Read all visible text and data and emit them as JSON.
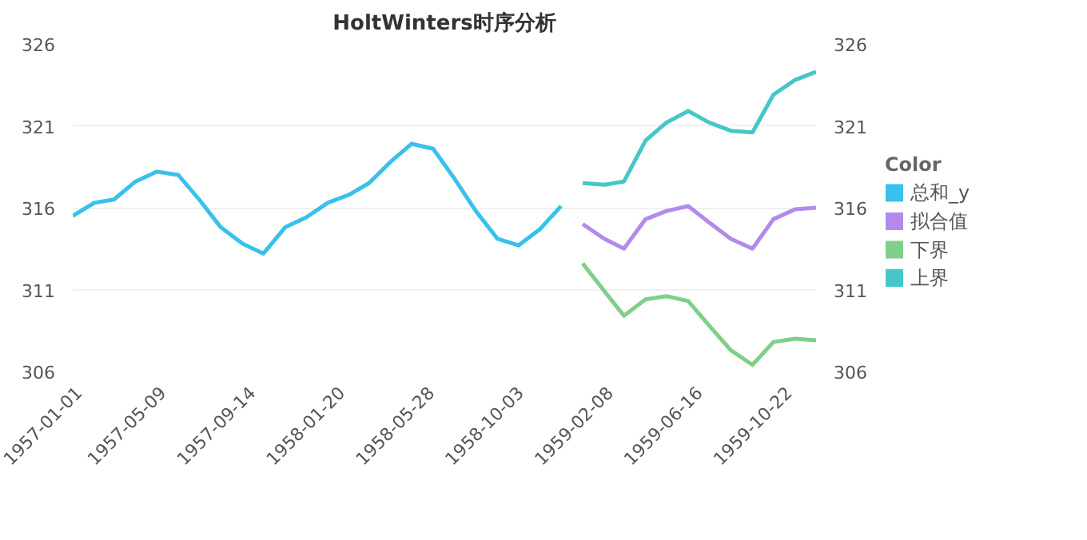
{
  "chart_data": {
    "type": "line",
    "title": "HoltWinters时序分析",
    "legend_title": "Color",
    "legend": "right",
    "grid": "y",
    "marker": "none",
    "line_style": "solid",
    "xlim": [
      "1957-01-01",
      "1959-12-01"
    ],
    "xticks": [
      "1957-01-01",
      "1957-05-09",
      "1957-09-14",
      "1958-01-20",
      "1958-05-28",
      "1958-10-03",
      "1959-02-08",
      "1959-06-16",
      "1959-10-22"
    ],
    "ylim": [
      306,
      326
    ],
    "yticks": [
      306,
      311,
      316,
      321,
      326
    ],
    "y2lim": [
      306,
      326
    ],
    "y2ticks": [
      306,
      311,
      316,
      321,
      326
    ],
    "series": [
      {
        "name": "总和_y",
        "color": "#38c1ec",
        "x": [
          "1957-01",
          "1957-02",
          "1957-03",
          "1957-04",
          "1957-05",
          "1957-06",
          "1957-07",
          "1957-08",
          "1957-09",
          "1957-10",
          "1957-11",
          "1957-12",
          "1958-01",
          "1958-02",
          "1958-03",
          "1958-04",
          "1958-05",
          "1958-06",
          "1958-07",
          "1958-08",
          "1958-09",
          "1958-10",
          "1958-11",
          "1958-12"
        ],
        "values": [
          315.5,
          316.3,
          316.5,
          317.6,
          318.2,
          318.0,
          316.5,
          314.8,
          313.8,
          313.2,
          314.8,
          315.4,
          316.3,
          316.8,
          317.5,
          318.8,
          319.9,
          319.6,
          317.8,
          315.8,
          314.1,
          313.7,
          314.7,
          316.1
        ]
      },
      {
        "name": "拟合值",
        "color": "#b38aec",
        "x": [
          "1959-01",
          "1959-02",
          "1959-03",
          "1959-04",
          "1959-05",
          "1959-06",
          "1959-07",
          "1959-08",
          "1959-09",
          "1959-10",
          "1959-11",
          "1959-12"
        ],
        "values": [
          315.0,
          314.1,
          313.5,
          315.3,
          315.8,
          316.1,
          315.1,
          314.1,
          313.5,
          315.3,
          315.9,
          316.0
        ]
      },
      {
        "name": "下界",
        "color": "#7fcf8a",
        "x": [
          "1959-01",
          "1959-02",
          "1959-03",
          "1959-04",
          "1959-05",
          "1959-06",
          "1959-07",
          "1959-08",
          "1959-09",
          "1959-10",
          "1959-11",
          "1959-12"
        ],
        "values": [
          312.6,
          310.9,
          309.4,
          310.4,
          310.6,
          310.3,
          308.8,
          307.3,
          306.4,
          307.8,
          308.0,
          307.9
        ]
      },
      {
        "name": "上界",
        "color": "#47c6c8",
        "x": [
          "1959-01",
          "1959-02",
          "1959-03",
          "1959-04",
          "1959-05",
          "1959-06",
          "1959-07",
          "1959-08",
          "1959-09",
          "1959-10",
          "1959-11",
          "1959-12"
        ],
        "values": [
          317.5,
          317.4,
          317.6,
          320.1,
          321.2,
          321.9,
          321.2,
          320.7,
          320.6,
          322.9,
          323.8,
          324.3
        ]
      }
    ]
  }
}
